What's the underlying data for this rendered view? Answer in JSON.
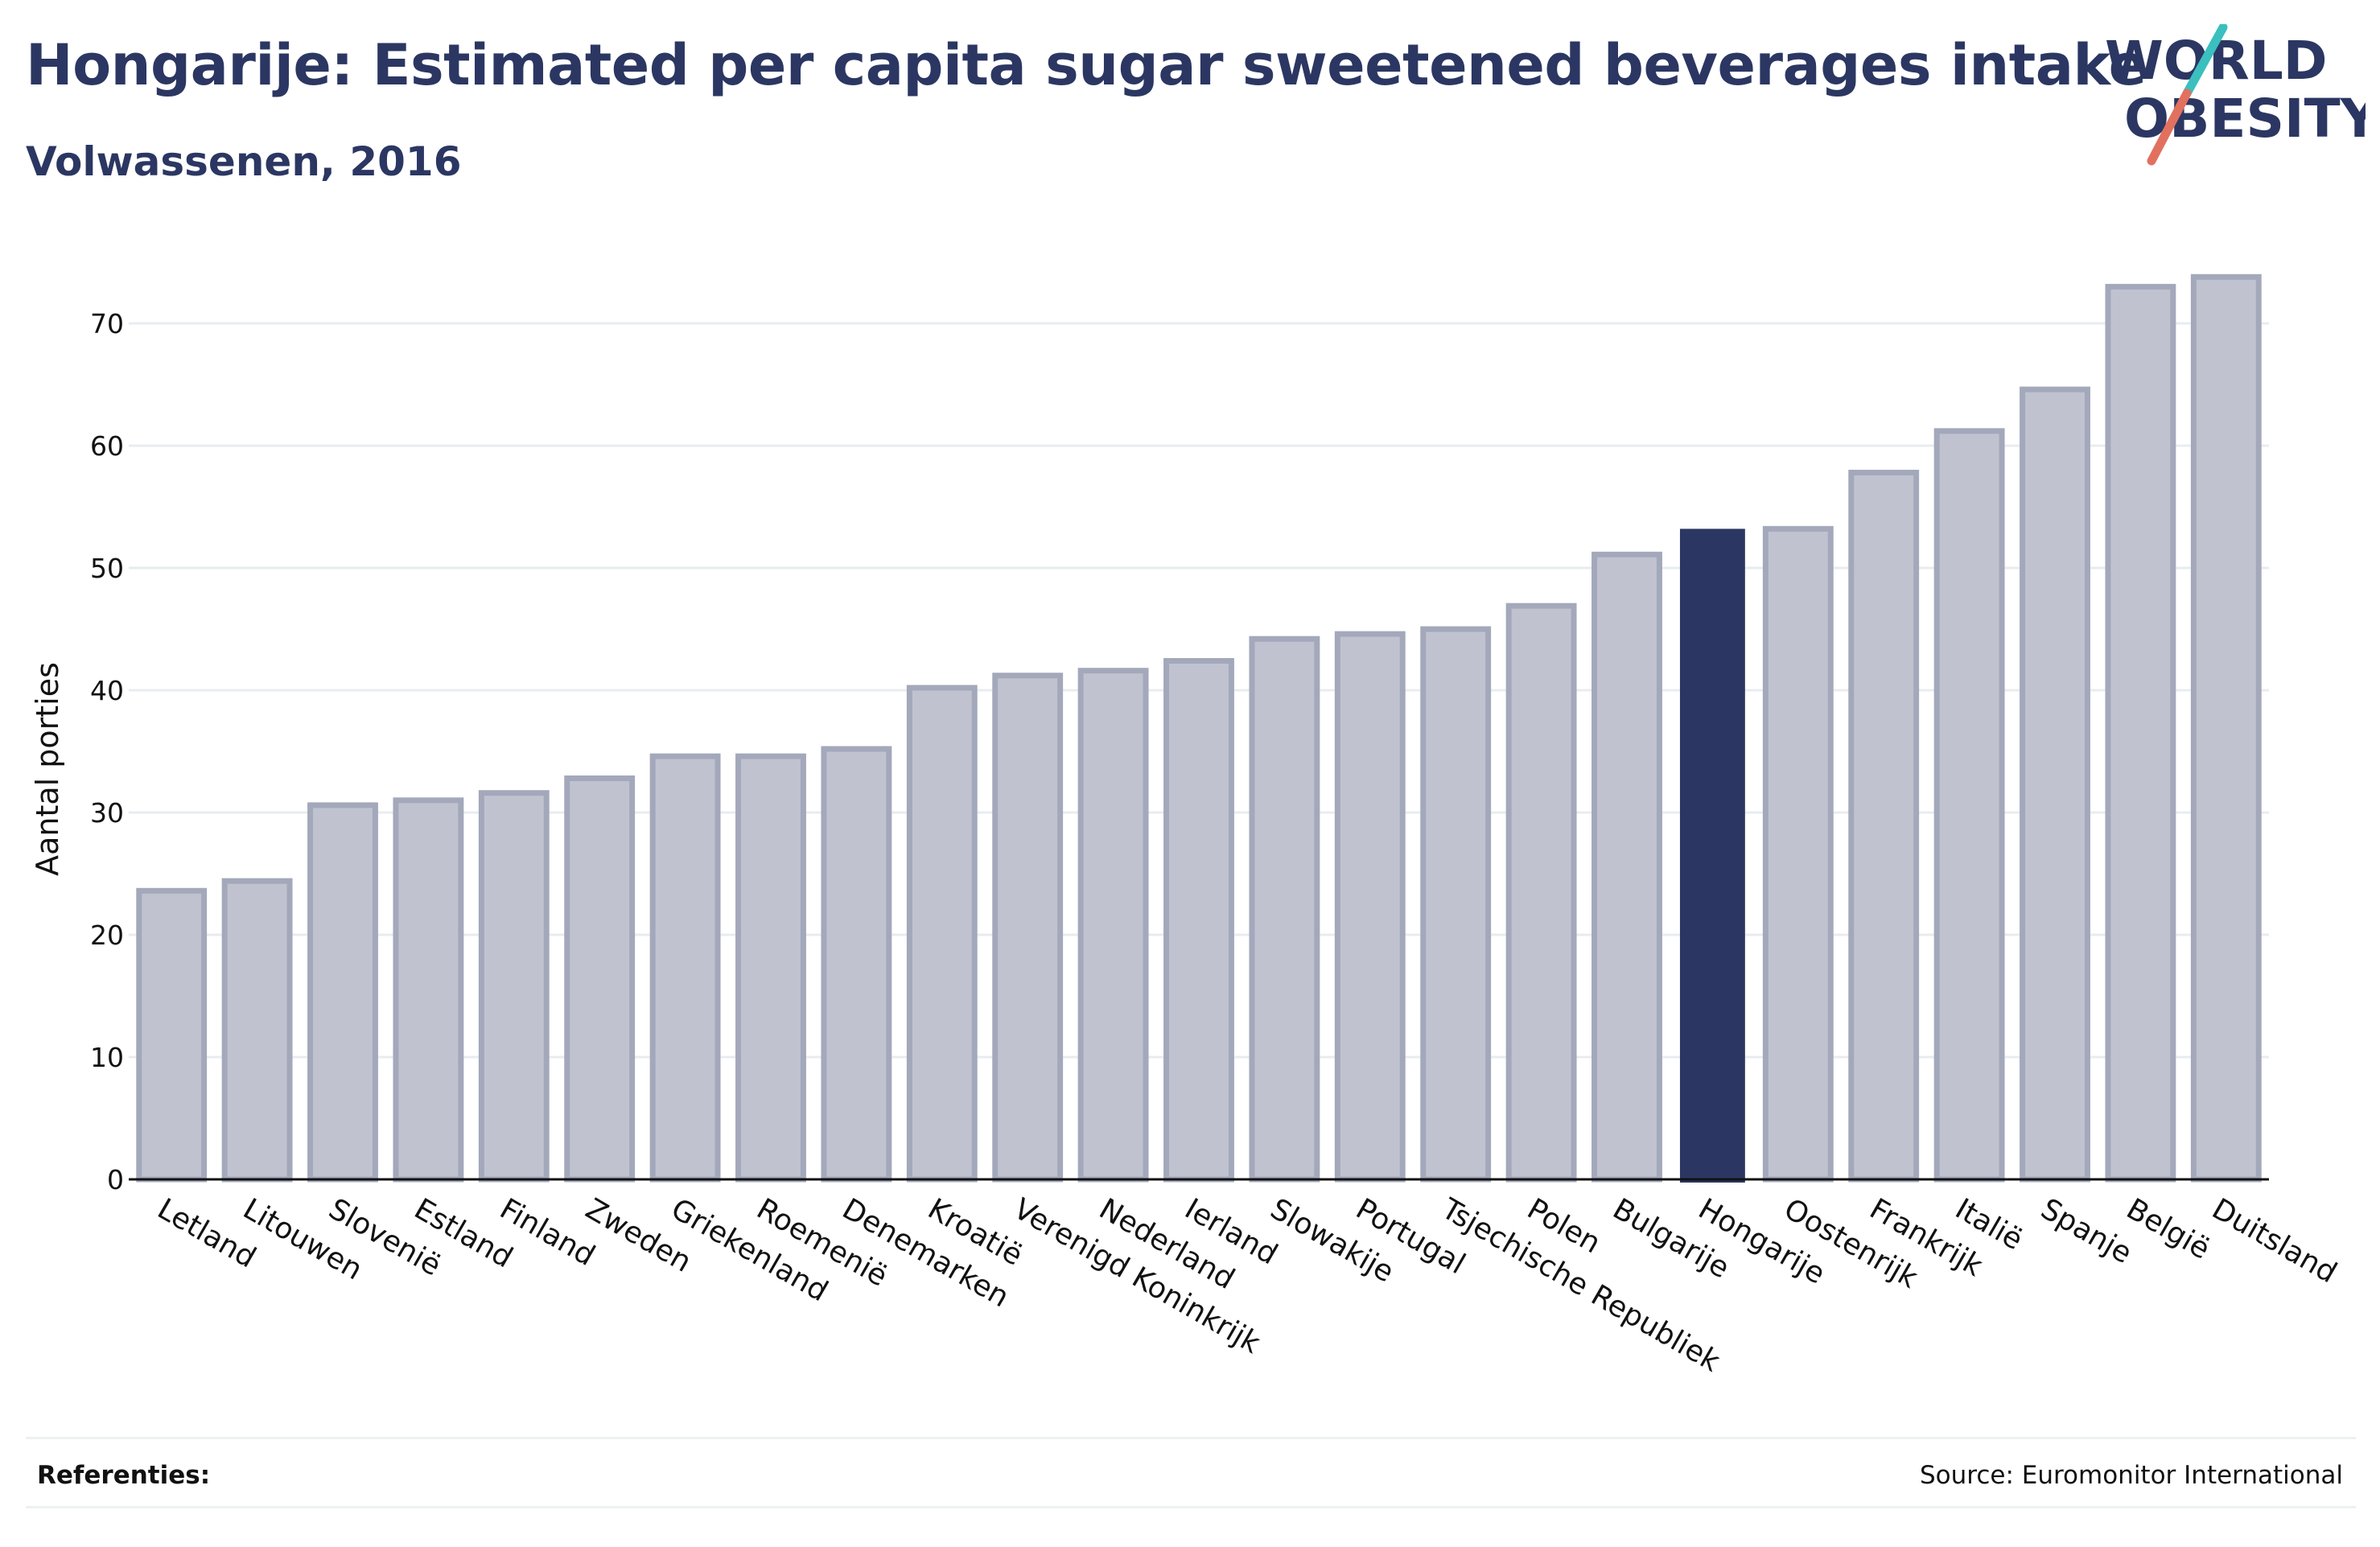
{
  "header": {
    "title": "Hongarije: Estimated per capita sugar sweetened beverages intake",
    "subtitle": "Volwassenen, 2016"
  },
  "logo": {
    "line1": "WORLD",
    "line2": "OBESITY",
    "slash_top_color": "#3bbfbf",
    "slash_bottom_color": "#e2705f",
    "text_color": "#2b3762"
  },
  "footer": {
    "references_label": "Referenties:",
    "source": "Source: Euromonitor International"
  },
  "colors": {
    "bar_fill": "#c0c3cf",
    "bar_stroke": "#a3a8bb",
    "highlight_fill": "#2b3762",
    "grid": "#e9ecef",
    "axis": "#111111"
  },
  "chart_data": {
    "type": "bar",
    "title": "Hongarije: Estimated per capita sugar sweetened beverages intake",
    "subtitle": "Volwassenen, 2016",
    "xlabel": "",
    "ylabel": "Aantal porties",
    "ylim": [
      0,
      75
    ],
    "yticks": [
      0,
      10,
      20,
      30,
      40,
      50,
      60,
      70
    ],
    "grid": true,
    "highlight": "Hongarije",
    "categories": [
      "Letland",
      "Litouwen",
      "Slovenië",
      "Estland",
      "Finland",
      "Zweden",
      "Griekenland",
      "Roemenië",
      "Denemarken",
      "Kroatië",
      "Verenigd Koninkrijk",
      "Nederland",
      "Ierland",
      "Slowakije",
      "Portugal",
      "Tsjechische Republiek",
      "Polen",
      "Bulgarije",
      "Hongarije",
      "Oostenrijk",
      "Frankrijk",
      "Italië",
      "Spanje",
      "België",
      "Duitsland"
    ],
    "values": [
      23.6,
      24.4,
      30.6,
      31.0,
      31.6,
      32.8,
      34.6,
      34.6,
      35.2,
      40.2,
      41.2,
      41.6,
      42.4,
      44.2,
      44.6,
      45.0,
      46.9,
      51.1,
      53.2,
      53.2,
      57.8,
      61.2,
      64.6,
      73.0,
      73.8
    ]
  }
}
